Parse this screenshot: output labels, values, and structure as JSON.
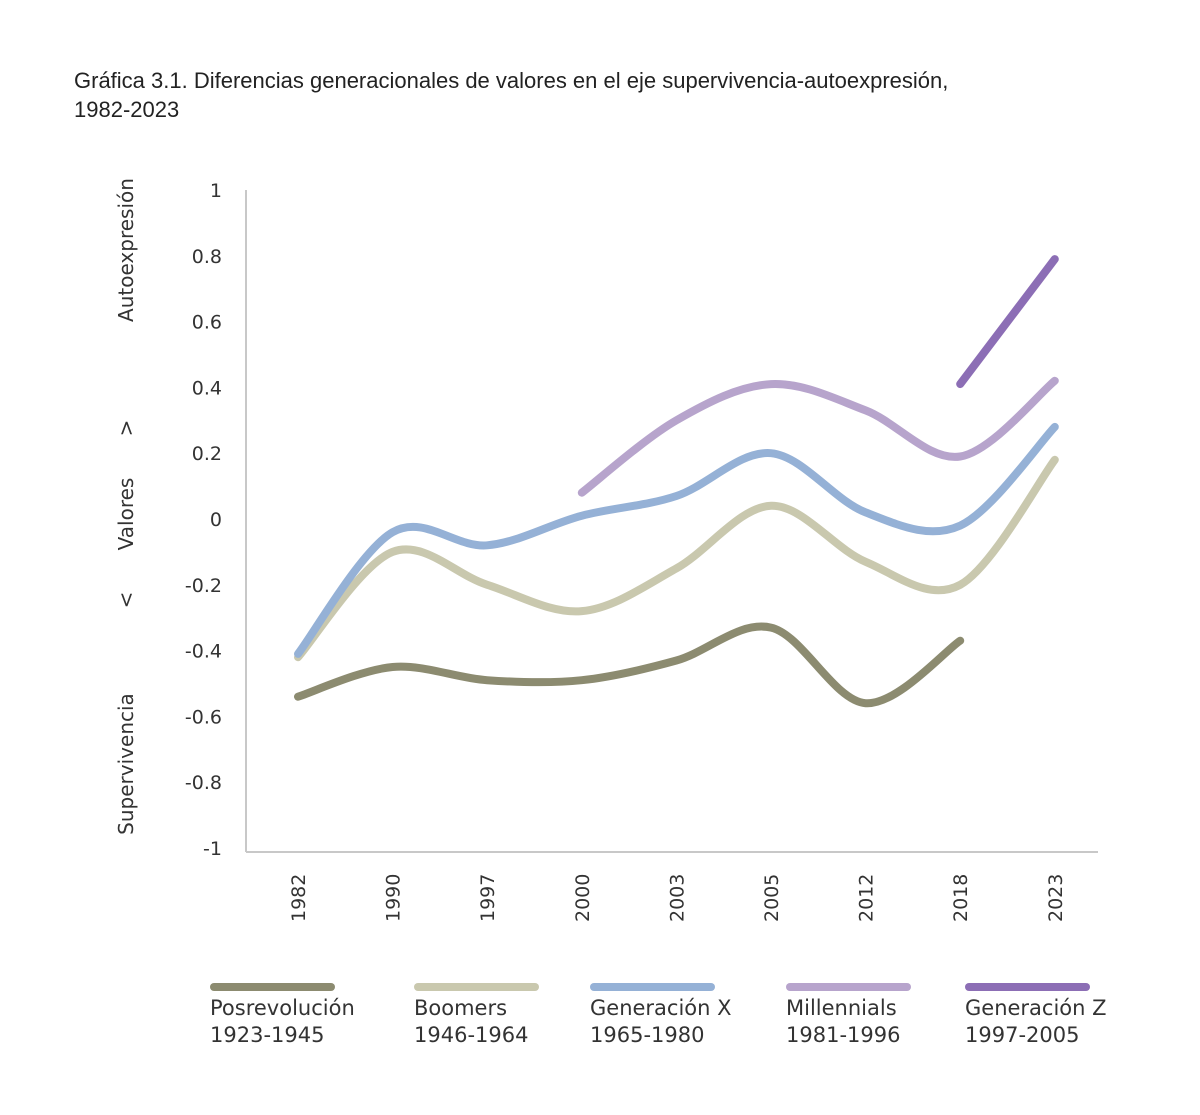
{
  "title": {
    "line1": "Gráfica 3.1. Diferencias generacionales de valores en el eje supervivencia-autoexpresión,",
    "line2": "1982-2023"
  },
  "chart_data": {
    "type": "line",
    "title": "Gráfica 3.1. Diferencias generacionales de valores en el eje supervivencia-autoexpresión, 1982-2023",
    "categories": [
      "1982",
      "1990",
      "1997",
      "2000",
      "2003",
      "2005",
      "2012",
      "2018",
      "2023"
    ],
    "ylim": [
      -1,
      1
    ],
    "yticks": [
      "1",
      "0.8",
      "0.6",
      "0.4",
      "0.2",
      "0",
      "-0.2",
      "-0.4",
      "-0.6",
      "-0.8",
      "-1"
    ],
    "ylabel": {
      "top": "Autoexpresión",
      "arrow_up": ">",
      "middle": "Valores",
      "arrow_down": "<",
      "bottom": "Supervivencia"
    },
    "legend_position": "bottom",
    "series": [
      {
        "name": "Posrevolución",
        "years": "1923-1945",
        "color": "#8c8b70",
        "values": [
          -0.54,
          -0.45,
          -0.49,
          -0.49,
          -0.43,
          -0.33,
          -0.56,
          -0.37,
          null
        ]
      },
      {
        "name": "Boomers",
        "years": "1946-1964",
        "color": "#c9c8ae",
        "values": [
          -0.42,
          -0.1,
          -0.2,
          -0.28,
          -0.15,
          0.04,
          -0.13,
          -0.2,
          0.18
        ]
      },
      {
        "name": "Generación X",
        "years": "1965-1980",
        "color": "#95b1d6",
        "values": [
          -0.41,
          -0.04,
          -0.08,
          0.01,
          0.07,
          0.2,
          0.02,
          -0.02,
          0.28
        ]
      },
      {
        "name": "Millennials",
        "years": "1981-1996",
        "color": "#b7a4cc",
        "values": [
          null,
          null,
          null,
          0.08,
          0.3,
          0.41,
          0.33,
          0.19,
          0.42
        ]
      },
      {
        "name": "Generación Z",
        "years": "1997-2005",
        "color": "#8c6eb5",
        "values": [
          null,
          null,
          null,
          null,
          null,
          null,
          null,
          0.41,
          0.79
        ]
      }
    ]
  }
}
